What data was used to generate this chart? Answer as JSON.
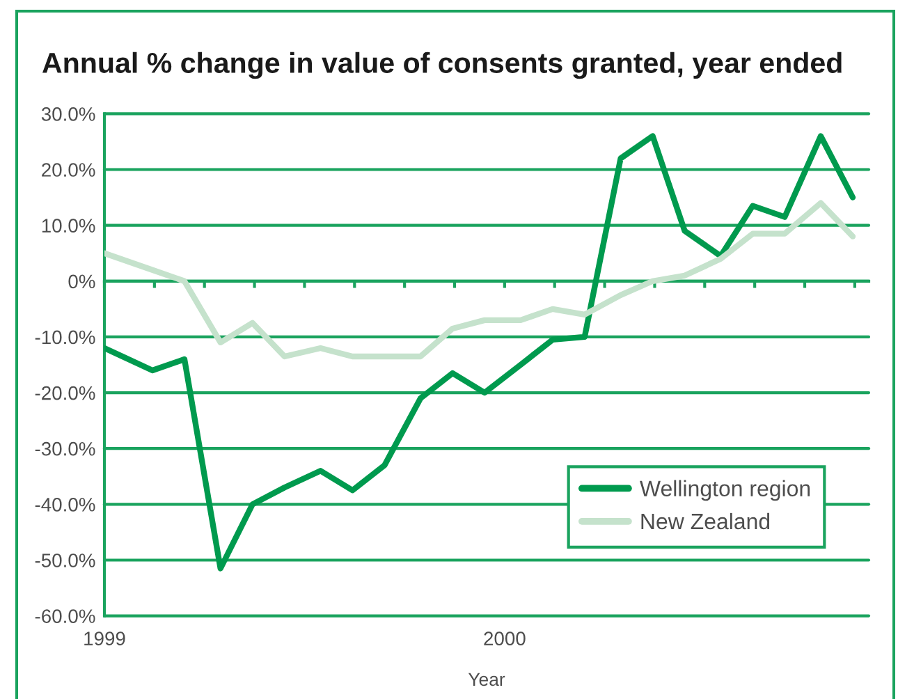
{
  "chart_data": {
    "type": "line",
    "title": "Annual % change in value of consents granted, year ended",
    "xlabel": "Year",
    "x": [
      1999.0,
      1999.12,
      1999.2,
      1999.29,
      1999.37,
      1999.45,
      1999.54,
      1999.62,
      1999.7,
      1999.79,
      1999.87,
      1999.95,
      2000.04,
      2000.12,
      2000.2,
      2000.29,
      2000.37,
      2000.45,
      2000.54,
      2000.62,
      2000.7,
      2000.79,
      2000.87
    ],
    "xlim": [
      1999,
      2000.91
    ],
    "xticks": [
      {
        "value": 1999,
        "label": "1999"
      },
      {
        "value": 1999.125,
        "label": null
      },
      {
        "value": 1999.25,
        "label": null
      },
      {
        "value": 1999.375,
        "label": null
      },
      {
        "value": 1999.5,
        "label": null
      },
      {
        "value": 1999.625,
        "label": null
      },
      {
        "value": 1999.75,
        "label": null
      },
      {
        "value": 1999.875,
        "label": null
      },
      {
        "value": 2000,
        "label": "2000"
      },
      {
        "value": 2000.125,
        "label": null
      },
      {
        "value": 2000.25,
        "label": null
      },
      {
        "value": 2000.375,
        "label": null
      },
      {
        "value": 2000.5,
        "label": null
      },
      {
        "value": 2000.625,
        "label": null
      },
      {
        "value": 2000.75,
        "label": null
      },
      {
        "value": 2000.875,
        "label": null
      }
    ],
    "ylim": [
      -60,
      30
    ],
    "yticks": [
      {
        "value": -60,
        "label": "-60.0%"
      },
      {
        "value": -50,
        "label": "-50.0%"
      },
      {
        "value": -40,
        "label": "-40.0%"
      },
      {
        "value": -30,
        "label": "-30.0%"
      },
      {
        "value": -20,
        "label": "-20.0%"
      },
      {
        "value": -10,
        "label": "-10.0%"
      },
      {
        "value": 0,
        "label": "0%"
      },
      {
        "value": 10,
        "label": "10.0%"
      },
      {
        "value": 20,
        "label": "20.0%"
      },
      {
        "value": 30,
        "label": "30.0%"
      }
    ],
    "grid": "y",
    "legend": "bottom right",
    "series": [
      {
        "name": "Wellington region",
        "color": "#009a4e",
        "values": [
          -12,
          -16,
          -14,
          -51.5,
          -40,
          -37,
          -34,
          -37.5,
          -33,
          -21,
          -16.5,
          -20,
          -15,
          -10.5,
          -10,
          22,
          26,
          9,
          4.5,
          13.5,
          11.5,
          26,
          15
        ]
      },
      {
        "name": "New Zealand",
        "color": "#c5e2cc",
        "values": [
          5,
          2,
          0,
          -11,
          -7.5,
          -13.5,
          -12,
          -13.5,
          -13.5,
          -13.5,
          -8.5,
          -7,
          -7,
          -5,
          -6,
          -2.5,
          0,
          1,
          4,
          8.5,
          8.5,
          14,
          8
        ]
      }
    ]
  }
}
